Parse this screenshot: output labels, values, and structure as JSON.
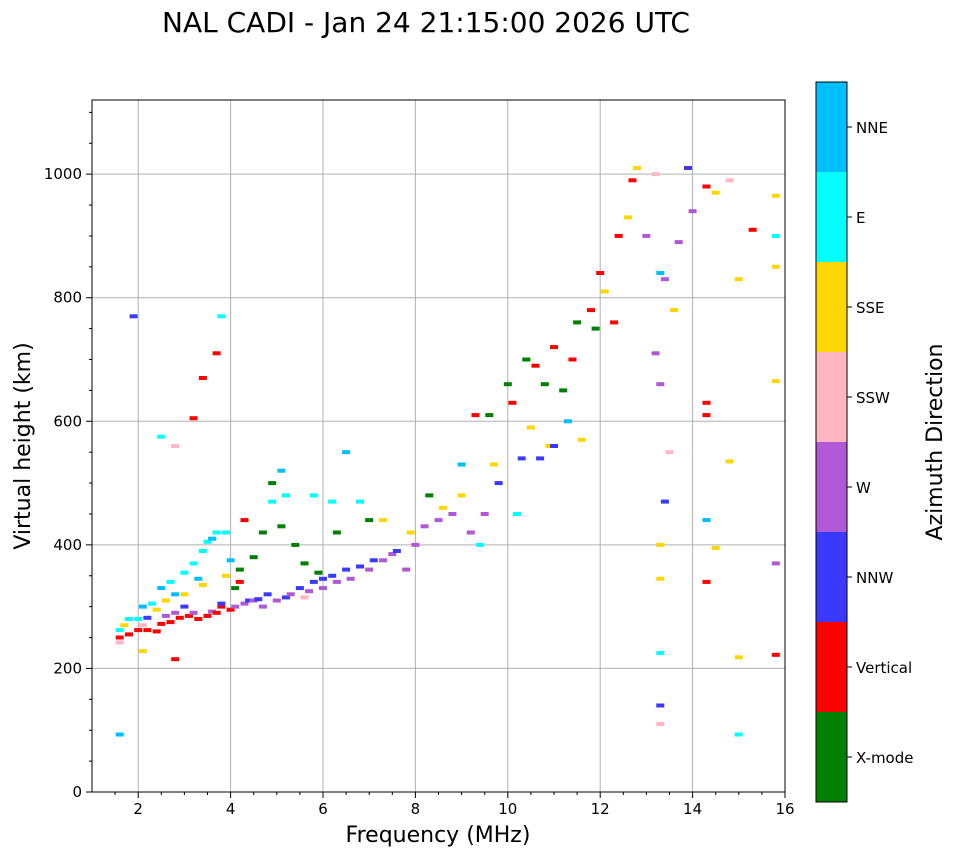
{
  "chart_data": {
    "type": "heatmap",
    "title": "NAL CADI - Jan 24 21:15:00 2026 UTC",
    "xlabel": "Frequency (MHz)",
    "ylabel": "Virtual height (km)",
    "xlim": [
      1,
      16
    ],
    "ylim": [
      0,
      1120
    ],
    "xticks": [
      2,
      4,
      6,
      8,
      10,
      12,
      14,
      16
    ],
    "yticks": [
      0,
      200,
      400,
      600,
      800,
      1000
    ],
    "grid": true,
    "colorbar": {
      "label": "Azimuth Direction",
      "categories": [
        {
          "name": "NNE",
          "color": "#00bfff"
        },
        {
          "name": "E",
          "color": "#00ffff"
        },
        {
          "name": "SSE",
          "color": "#ffd700"
        },
        {
          "name": "SSW",
          "color": "#ffb6c1"
        },
        {
          "name": "W",
          "color": "#b058d6"
        },
        {
          "name": "NNW",
          "color": "#3a3aff"
        },
        {
          "name": "Vertical",
          "color": "#ff0000"
        },
        {
          "name": "X-mode",
          "color": "#008000"
        }
      ]
    },
    "echoes": [
      [
        "Vertical",
        1.6,
        250
      ],
      [
        "SSW",
        1.6,
        242
      ],
      [
        "E",
        1.6,
        262
      ],
      [
        "SSE",
        1.7,
        270
      ],
      [
        "Vertical",
        1.8,
        255
      ],
      [
        "E",
        1.8,
        280
      ],
      [
        "NNE",
        1.6,
        93
      ],
      [
        "Vertical",
        2.0,
        262
      ],
      [
        "E",
        2.0,
        280
      ],
      [
        "SSW",
        2.1,
        270
      ],
      [
        "NNE",
        2.1,
        300
      ],
      [
        "Vertical",
        2.2,
        262
      ],
      [
        "NNW",
        2.2,
        282
      ],
      [
        "E",
        2.3,
        305
      ],
      [
        "Vertical",
        2.4,
        260
      ],
      [
        "SSE",
        2.4,
        295
      ],
      [
        "NNE",
        2.5,
        330
      ],
      [
        "Vertical",
        2.5,
        272
      ],
      [
        "W",
        2.6,
        285
      ],
      [
        "SSE",
        2.6,
        310
      ],
      [
        "E",
        2.7,
        340
      ],
      [
        "Vertical",
        2.7,
        275
      ],
      [
        "NNE",
        2.8,
        320
      ],
      [
        "W",
        2.8,
        290
      ],
      [
        "Vertical",
        2.9,
        282
      ],
      [
        "E",
        3.0,
        355
      ],
      [
        "SSE",
        3.0,
        320
      ],
      [
        "NNW",
        3.0,
        300
      ],
      [
        "Vertical",
        3.1,
        285
      ],
      [
        "E",
        3.2,
        370
      ],
      [
        "W",
        3.2,
        290
      ],
      [
        "NNE",
        3.3,
        345
      ],
      [
        "Vertical",
        3.3,
        280
      ],
      [
        "E",
        3.4,
        390
      ],
      [
        "SSE",
        3.4,
        335
      ],
      [
        "Vertical",
        3.5,
        285
      ],
      [
        "E",
        3.5,
        405
      ],
      [
        "NNE",
        3.6,
        410
      ],
      [
        "W",
        3.6,
        292
      ],
      [
        "Vertical",
        3.7,
        290
      ],
      [
        "E",
        3.7,
        420
      ],
      [
        "Vertical",
        3.8,
        300
      ],
      [
        "NNW",
        3.8,
        305
      ],
      [
        "E",
        3.9,
        420
      ],
      [
        "SSE",
        3.9,
        350
      ],
      [
        "Vertical",
        4.0,
        295
      ],
      [
        "NNE",
        4.0,
        375
      ],
      [
        "X-mode",
        4.1,
        330
      ],
      [
        "W",
        4.1,
        300
      ],
      [
        "Vertical",
        4.2,
        340
      ],
      [
        "X-mode",
        4.2,
        360
      ],
      [
        "W",
        4.3,
        305
      ],
      [
        "E",
        4.3,
        440
      ],
      [
        "Vertical",
        4.3,
        440
      ],
      [
        "NNW",
        4.4,
        310
      ],
      [
        "X-mode",
        4.5,
        380
      ],
      [
        "W",
        4.5,
        310
      ],
      [
        "NNW",
        4.6,
        312
      ],
      [
        "X-mode",
        4.7,
        420
      ],
      [
        "W",
        4.7,
        300
      ],
      [
        "NNW",
        4.8,
        320
      ],
      [
        "X-mode",
        4.9,
        500
      ],
      [
        "E",
        4.9,
        470
      ],
      [
        "W",
        5.0,
        310
      ],
      [
        "NNE",
        5.1,
        520
      ],
      [
        "X-mode",
        5.1,
        430
      ],
      [
        "NNW",
        5.2,
        315
      ],
      [
        "E",
        5.2,
        480
      ],
      [
        "W",
        5.3,
        320
      ],
      [
        "X-mode",
        5.4,
        400
      ],
      [
        "NNW",
        5.5,
        330
      ],
      [
        "SSW",
        5.6,
        315
      ],
      [
        "X-mode",
        5.6,
        370
      ],
      [
        "W",
        5.7,
        325
      ],
      [
        "NNW",
        5.8,
        340
      ],
      [
        "E",
        5.8,
        480
      ],
      [
        "X-mode",
        5.9,
        355
      ],
      [
        "NNW",
        6.0,
        345
      ],
      [
        "W",
        6.0,
        330
      ],
      [
        "NNW",
        6.2,
        350
      ],
      [
        "E",
        6.2,
        470
      ],
      [
        "W",
        6.3,
        340
      ],
      [
        "X-mode",
        6.3,
        420
      ],
      [
        "NNW",
        6.5,
        360
      ],
      [
        "NNE",
        6.5,
        550
      ],
      [
        "W",
        6.6,
        345
      ],
      [
        "E",
        6.8,
        470
      ],
      [
        "NNW",
        6.8,
        365
      ],
      [
        "W",
        7.0,
        360
      ],
      [
        "X-mode",
        7.0,
        440
      ],
      [
        "NNW",
        7.1,
        375
      ],
      [
        "W",
        7.3,
        375
      ],
      [
        "SSE",
        7.3,
        440
      ],
      [
        "W",
        7.5,
        385
      ],
      [
        "NNW",
        7.6,
        390
      ],
      [
        "W",
        7.8,
        360
      ],
      [
        "SSE",
        7.9,
        420
      ],
      [
        "W",
        8.0,
        400
      ],
      [
        "W",
        8.2,
        430
      ],
      [
        "X-mode",
        8.3,
        480
      ],
      [
        "W",
        8.5,
        440
      ],
      [
        "SSE",
        8.6,
        460
      ],
      [
        "W",
        8.8,
        450
      ],
      [
        "NNE",
        9.0,
        530
      ],
      [
        "SSE",
        9.0,
        480
      ],
      [
        "W",
        9.2,
        420
      ],
      [
        "Vertical",
        9.3,
        610
      ],
      [
        "E",
        9.4,
        400
      ],
      [
        "W",
        9.5,
        450
      ],
      [
        "X-mode",
        9.6,
        610
      ],
      [
        "SSE",
        9.7,
        530
      ],
      [
        "NNW",
        9.8,
        500
      ],
      [
        "X-mode",
        10.0,
        660
      ],
      [
        "Vertical",
        10.1,
        630
      ],
      [
        "E",
        10.2,
        450
      ],
      [
        "NNW",
        10.3,
        540
      ],
      [
        "X-mode",
        10.4,
        700
      ],
      [
        "SSE",
        10.5,
        590
      ],
      [
        "Vertical",
        10.6,
        690
      ],
      [
        "NNW",
        10.7,
        540
      ],
      [
        "X-mode",
        10.8,
        660
      ],
      [
        "SSE",
        10.9,
        560
      ],
      [
        "Vertical",
        11.0,
        720
      ],
      [
        "NNW",
        11.0,
        560
      ],
      [
        "X-mode",
        11.2,
        650
      ],
      [
        "NNE",
        11.3,
        600
      ],
      [
        "Vertical",
        11.4,
        700
      ],
      [
        "X-mode",
        11.5,
        760
      ],
      [
        "SSE",
        11.6,
        570
      ],
      [
        "Vertical",
        11.8,
        780
      ],
      [
        "X-mode",
        11.9,
        750
      ],
      [
        "Vertical",
        12.0,
        840
      ],
      [
        "SSE",
        12.1,
        810
      ],
      [
        "Vertical",
        12.3,
        760
      ],
      [
        "Vertical",
        12.4,
        900
      ],
      [
        "SSE",
        12.6,
        930
      ],
      [
        "Vertical",
        12.7,
        990
      ],
      [
        "SSE",
        12.8,
        1010
      ],
      [
        "W",
        13.0,
        900
      ],
      [
        "SSW",
        13.2,
        1000
      ],
      [
        "NNE",
        13.3,
        840
      ],
      [
        "W",
        13.4,
        830
      ],
      [
        "SSE",
        13.6,
        780
      ],
      [
        "W",
        13.7,
        890
      ],
      [
        "NNW",
        13.9,
        1010
      ],
      [
        "W",
        14.0,
        940
      ],
      [
        "Vertical",
        14.3,
        980
      ],
      [
        "SSE",
        14.5,
        970
      ],
      [
        "SSW",
        14.8,
        990
      ],
      [
        "SSE",
        15.0,
        830
      ],
      [
        "Vertical",
        15.3,
        910
      ],
      [
        "E",
        15.8,
        900
      ],
      [
        "SSE",
        15.8,
        965
      ],
      [
        "SSE",
        15.8,
        850
      ],
      [
        "Vertical",
        14.3,
        610
      ],
      [
        "Vertical",
        14.3,
        630
      ],
      [
        "SSE",
        14.8,
        535
      ],
      [
        "W",
        13.2,
        710
      ],
      [
        "W",
        13.3,
        660
      ],
      [
        "SSW",
        13.5,
        550
      ],
      [
        "NNW",
        13.4,
        470
      ],
      [
        "NNE",
        14.3,
        440
      ],
      [
        "SSE",
        13.3,
        400
      ],
      [
        "SSE",
        13.3,
        345
      ],
      [
        "Vertical",
        14.3,
        340
      ],
      [
        "SSE",
        14.5,
        395
      ],
      [
        "SSE",
        15.0,
        218
      ],
      [
        "E",
        13.3,
        225
      ],
      [
        "NNW",
        13.3,
        140
      ],
      [
        "SSW",
        13.3,
        110
      ],
      [
        "E",
        15.0,
        93
      ],
      [
        "Vertical",
        15.8,
        222
      ],
      [
        "W",
        15.8,
        370
      ],
      [
        "SSE",
        15.8,
        665
      ],
      [
        "NNW",
        1.9,
        770
      ],
      [
        "Vertical",
        3.7,
        710
      ],
      [
        "Vertical",
        3.4,
        670
      ],
      [
        "Vertical",
        3.2,
        605
      ],
      [
        "E",
        2.5,
        575
      ],
      [
        "SSW",
        2.8,
        560
      ],
      [
        "Vertical",
        2.8,
        215
      ],
      [
        "SSE",
        2.1,
        228
      ],
      [
        "E",
        3.8,
        770
      ]
    ]
  }
}
